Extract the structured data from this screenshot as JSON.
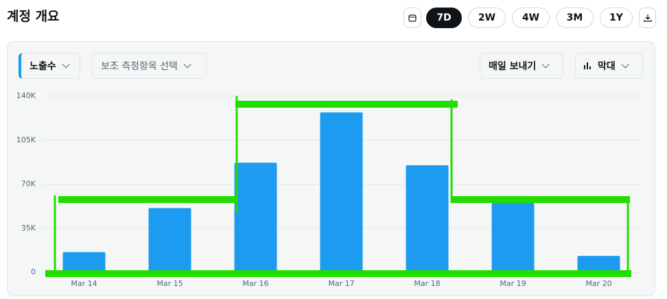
{
  "header": {
    "title": "계정 개요",
    "ranges": [
      "7D",
      "2W",
      "4W",
      "3M",
      "1Y"
    ],
    "active_range": "7D"
  },
  "toolbar": {
    "metric": "노출수",
    "secondary": "보조 측정항목 선택",
    "export": "매일 보내기",
    "chart_kind": "막대"
  },
  "chart_data": {
    "type": "bar",
    "categories": [
      "Mar 14",
      "Mar 15",
      "Mar 16",
      "Mar 17",
      "Mar 18",
      "Mar 19",
      "Mar 20"
    ],
    "values": [
      16000,
      51000,
      87000,
      127000,
      85000,
      55000,
      13000
    ],
    "color": "#1d9bf0",
    "ylim": [
      0,
      140000
    ],
    "yticks": [
      0,
      {
        "value": 35000,
        "label": "35K"
      },
      {
        "value": 70000,
        "label": "70K"
      },
      {
        "value": 105000,
        "label": "105K"
      },
      {
        "value": 140000,
        "label": "140K"
      }
    ],
    "grid": true
  }
}
